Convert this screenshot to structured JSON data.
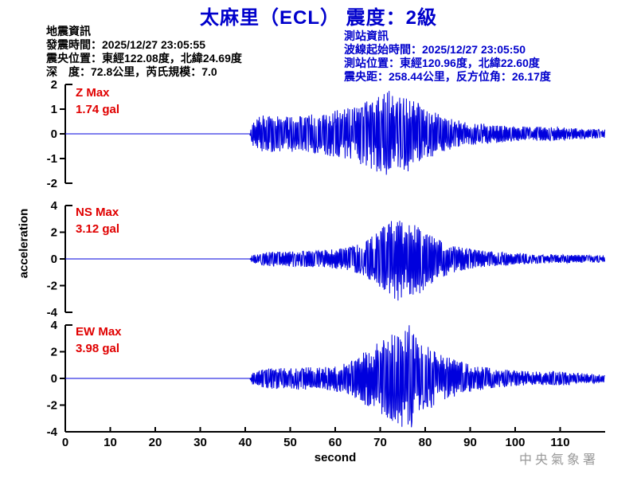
{
  "title": "太麻里（ECL） 震度：2級",
  "colors": {
    "title_blue": "#0000CC",
    "wave_blue": "#0000DD",
    "label_red": "#E00000",
    "axis_black": "#000000",
    "watermark_gray": "#999999"
  },
  "earthquake_info": {
    "header": "地震資訊",
    "origin_time": "發震時間：2025/12/27 23:05:55",
    "epicenter": "震央位置：東經122.08度，北緯24.69度",
    "depth_magnitude": "深　度：72.8公里，芮氏規模：7.0"
  },
  "station_info": {
    "header": "測站資訊",
    "wave_start_time": "波線起始時間：2025/12/27 23:05:50",
    "station_location": "測站位置：東經120.96度，北緯22.60度",
    "distance_azimuth": "震央距：258.44公里，反方位角：26.17度"
  },
  "chart_data": {
    "type": "line",
    "title": "太麻里（ECL） 震度：2級",
    "xlabel": "second",
    "ylabel": "acceleration",
    "x_range": [
      0,
      120
    ],
    "x_ticks": [
      0,
      10,
      20,
      30,
      40,
      50,
      60,
      70,
      80,
      90,
      100,
      110
    ],
    "signal_start_s": 41,
    "grid": false,
    "watermark": "中央氣象署",
    "traces": [
      {
        "name": "Z",
        "label": "Z Max",
        "max_text": "1.74 gal",
        "max_gal": 1.74,
        "peak_time_s": 72,
        "ylim": [
          -2,
          2
        ],
        "y_ticks": [
          2,
          1,
          0,
          -1,
          -2
        ],
        "envelope": [
          [
            0,
            0
          ],
          [
            41,
            0
          ],
          [
            41.6,
            0.5
          ],
          [
            44,
            0.8
          ],
          [
            48,
            0.7
          ],
          [
            52,
            0.75
          ],
          [
            56,
            0.8
          ],
          [
            60,
            0.95
          ],
          [
            64,
            1.1
          ],
          [
            68,
            1.45
          ],
          [
            72,
            1.74
          ],
          [
            74,
            1.5
          ],
          [
            76,
            1.55
          ],
          [
            78,
            1.35
          ],
          [
            80,
            1.05
          ],
          [
            83,
            0.8
          ],
          [
            86,
            0.6
          ],
          [
            90,
            0.45
          ],
          [
            94,
            0.4
          ],
          [
            98,
            0.33
          ],
          [
            102,
            0.3
          ],
          [
            106,
            0.28
          ],
          [
            110,
            0.3
          ],
          [
            114,
            0.22
          ],
          [
            120,
            0.18
          ]
        ]
      },
      {
        "name": "NS",
        "label": "NS Max",
        "max_text": "3.12 gal",
        "max_gal": 3.12,
        "peak_time_s": 74,
        "ylim": [
          -4,
          4
        ],
        "y_ticks": [
          4,
          2,
          0,
          -2,
          -4
        ],
        "envelope": [
          [
            0,
            0
          ],
          [
            41,
            0
          ],
          [
            41.6,
            0.35
          ],
          [
            44,
            0.55
          ],
          [
            48,
            0.6
          ],
          [
            52,
            0.6
          ],
          [
            56,
            0.65
          ],
          [
            60,
            0.75
          ],
          [
            64,
            0.95
          ],
          [
            67,
            1.4
          ],
          [
            70,
            2.3
          ],
          [
            72,
            2.8
          ],
          [
            74,
            3.12
          ],
          [
            76,
            2.7
          ],
          [
            78,
            2.9
          ],
          [
            80,
            2.2
          ],
          [
            83,
            1.5
          ],
          [
            86,
            1.05
          ],
          [
            90,
            0.75
          ],
          [
            94,
            0.6
          ],
          [
            98,
            0.5
          ],
          [
            102,
            0.42
          ],
          [
            106,
            0.36
          ],
          [
            110,
            0.32
          ],
          [
            115,
            0.3
          ],
          [
            120,
            0.26
          ]
        ]
      },
      {
        "name": "EW",
        "label": "EW Max",
        "max_text": "3.98 gal",
        "max_gal": 3.98,
        "peak_time_s": 76.5,
        "ylim": [
          -4,
          4
        ],
        "y_ticks": [
          4,
          2,
          0,
          -2,
          -4
        ],
        "envelope": [
          [
            0,
            0
          ],
          [
            41,
            0
          ],
          [
            41.6,
            0.45
          ],
          [
            44,
            0.7
          ],
          [
            47,
            0.8
          ],
          [
            50,
            0.75
          ],
          [
            53,
            0.9
          ],
          [
            56,
            0.8
          ],
          [
            60,
            0.95
          ],
          [
            63,
            1.2
          ],
          [
            66,
            1.9
          ],
          [
            69,
            2.6
          ],
          [
            72,
            3.2
          ],
          [
            74.5,
            3.6
          ],
          [
            76.5,
            3.98
          ],
          [
            78,
            3.1
          ],
          [
            80,
            2.5
          ],
          [
            83,
            1.9
          ],
          [
            86,
            1.5
          ],
          [
            90,
            1.05
          ],
          [
            94,
            0.8
          ],
          [
            98,
            0.65
          ],
          [
            102,
            0.55
          ],
          [
            106,
            0.5
          ],
          [
            110,
            0.55
          ],
          [
            114,
            0.4
          ],
          [
            120,
            0.33
          ]
        ]
      }
    ]
  }
}
